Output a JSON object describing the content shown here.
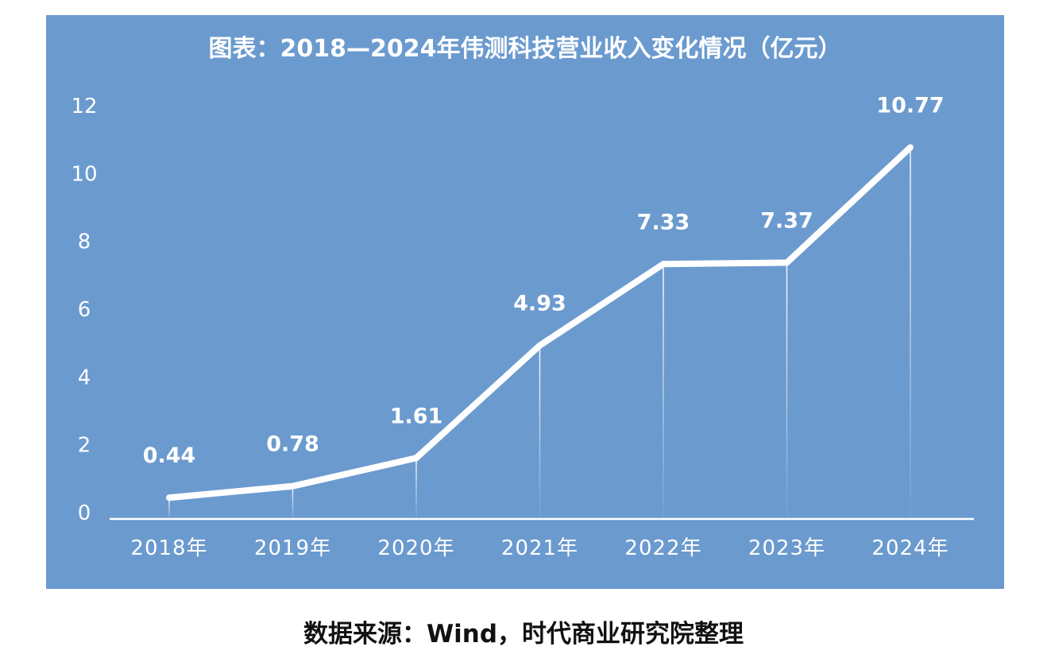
{
  "chart_data": {
    "type": "line",
    "title": "图表：2018—2024年伟测科技营业收入变化情况（亿元）",
    "categories": [
      "2018年",
      "2019年",
      "2020年",
      "2021年",
      "2022年",
      "2023年",
      "2024年"
    ],
    "series": [
      {
        "values": [
          0.44,
          0.78,
          1.61,
          4.93,
          7.33,
          7.37,
          10.77
        ]
      }
    ],
    "data_labels": [
      "0.44",
      "0.78",
      "1.61",
      "4.93",
      "7.33",
      "7.37",
      "10.77"
    ],
    "y_ticks": [
      "0",
      "2",
      "4",
      "6",
      "8",
      "10",
      "12"
    ],
    "ylim": [
      0,
      12
    ],
    "grid": false,
    "colors": {
      "background": "#6b9acf",
      "line": "#ffffff"
    }
  },
  "source_note": "数据来源：Wind，时代商业研究院整理"
}
